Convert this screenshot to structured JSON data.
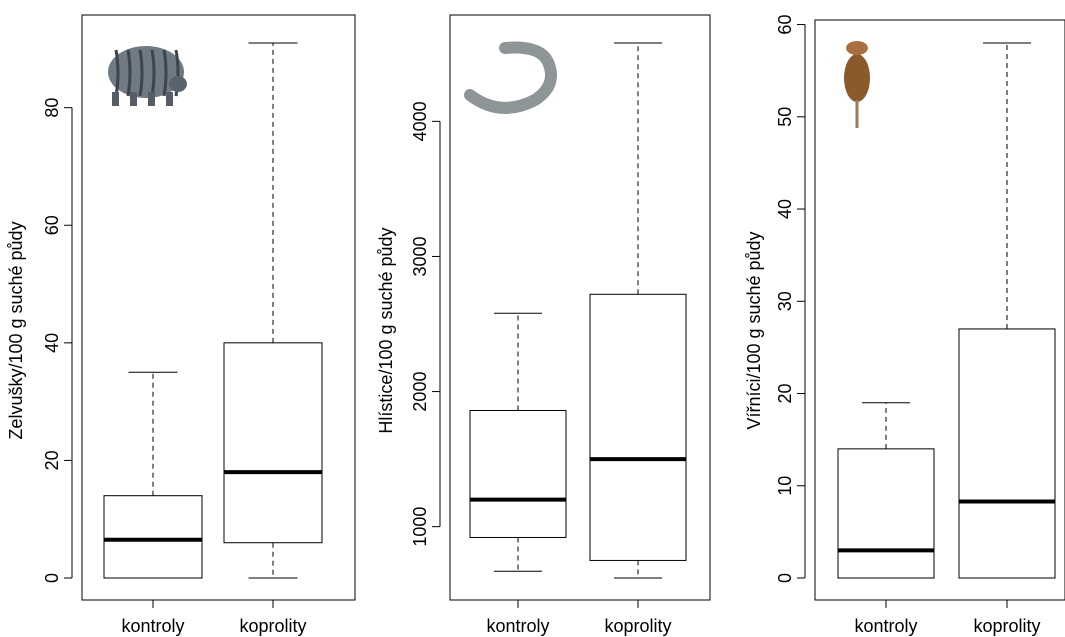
{
  "chart_data": [
    {
      "type": "boxplot",
      "categories": [
        "kontroly",
        "koprolity"
      ],
      "ylabel": "Zelvušky/100 g suché půdy",
      "yticks": [
        0,
        20,
        40,
        60,
        80
      ],
      "ylim": [
        0,
        91
      ],
      "icon": "tardigrade-icon",
      "boxes": [
        {
          "label": "kontroly",
          "min": 0,
          "q1": 0,
          "median": 6.5,
          "q3": 14,
          "max": 35
        },
        {
          "label": "koprolity",
          "min": 0,
          "q1": 6,
          "median": 18,
          "q3": 40,
          "max": 91
        }
      ]
    },
    {
      "type": "boxplot",
      "categories": [
        "kontroly",
        "koprolity"
      ],
      "ylabel": "Hlístice/100 g suché půdy",
      "yticks": [
        1000,
        2000,
        3000,
        4000
      ],
      "ylim": [
        620,
        4580
      ],
      "icon": "nematode-icon",
      "boxes": [
        {
          "label": "kontroly",
          "min": 670,
          "q1": 920,
          "median": 1200,
          "q3": 1860,
          "max": 2580
        },
        {
          "label": "koprolity",
          "min": 620,
          "q1": 750,
          "median": 1500,
          "q3": 2720,
          "max": 4580
        }
      ]
    },
    {
      "type": "boxplot",
      "categories": [
        "kontroly",
        "koprolity"
      ],
      "ylabel": "Vířníci/100 g suché půdy",
      "yticks": [
        0,
        10,
        20,
        30,
        40,
        50,
        60
      ],
      "ylim": [
        0,
        58
      ],
      "icon": "rotifer-icon",
      "boxes": [
        {
          "label": "kontroly",
          "min": 0,
          "q1": 0,
          "median": 3,
          "q3": 14,
          "max": 19
        },
        {
          "label": "koprolity",
          "min": 0,
          "q1": 0,
          "median": 8.3,
          "q3": 27,
          "max": 58
        }
      ]
    }
  ]
}
